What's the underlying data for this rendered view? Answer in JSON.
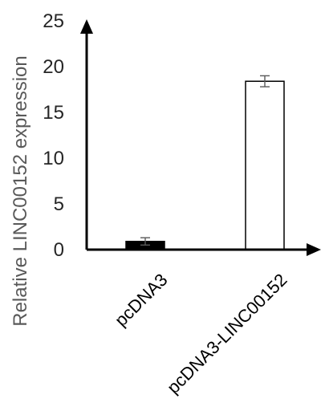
{
  "chart_data": {
    "type": "bar",
    "categories": [
      "pcDNA3",
      "pcDNA3-LINC00152"
    ],
    "values": [
      0.9,
      18.4
    ],
    "errors": [
      0.4,
      0.6
    ],
    "bar_fills": [
      "#000000",
      "#ffffff"
    ],
    "title": "",
    "xlabel": "",
    "ylabel": "Relative LINC00152 expression",
    "ylim": [
      0,
      25
    ],
    "yticks": [
      0,
      5,
      10,
      15,
      20,
      25
    ],
    "grid": false,
    "legend": "none"
  }
}
